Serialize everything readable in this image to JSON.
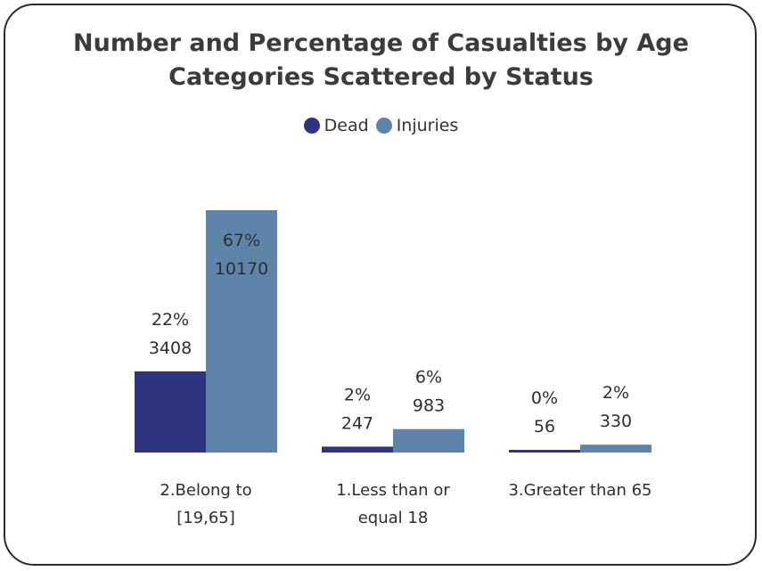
{
  "chart_data": {
    "type": "bar",
    "title_lines": [
      "Number and Percentage of Casualties by Age",
      "Categories Scattered by Status"
    ],
    "categories": [
      [
        "2.Belong to",
        "[19,65]"
      ],
      [
        "1.Less than or",
        "equal 18"
      ],
      [
        "3.Greater than 65"
      ]
    ],
    "series": [
      {
        "name": "Dead",
        "color": "#2e3480",
        "values": [
          3408,
          247,
          56
        ],
        "percents": [
          "22%",
          "2%",
          "0%"
        ]
      },
      {
        "name": "Injuries",
        "color": "#5f84aa",
        "values": [
          10170,
          983,
          330
        ],
        "percents": [
          "67%",
          "6%",
          "2%"
        ]
      }
    ],
    "legend_position": "top-center",
    "grid": false
  }
}
